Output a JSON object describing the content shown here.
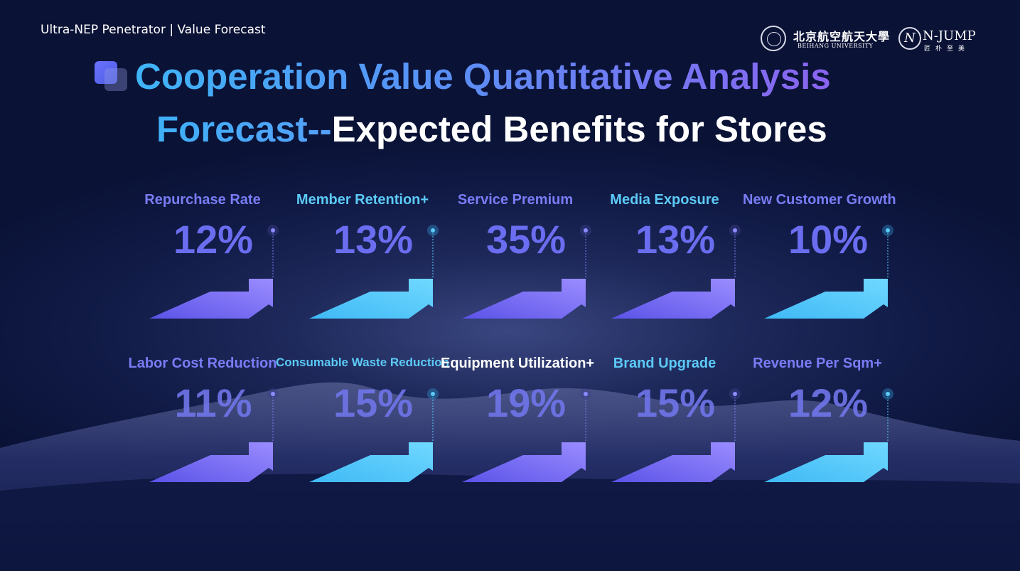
{
  "header": {
    "breadcrumb": "Ultra-NEP Penetrator | Value Forecast",
    "logo_beihang_cn": "北京航空航天大學",
    "logo_beihang_en": "BEIHANG UNIVERSITY",
    "logo_njump": "N-JUMP",
    "logo_njump_sub": "匠朴至美"
  },
  "title": {
    "line1": "Cooperation Value Quantitative Analysis",
    "line2_highlight": "Forecast--",
    "line2_rest": "Expected Benefits for Stores"
  },
  "metrics_top": [
    {
      "label": "Repurchase Rate",
      "value": "12%",
      "label_color": "#7a7cf5",
      "arrow": "purple"
    },
    {
      "label": "Member Retention+",
      "value": "13%",
      "label_color": "#5ccaf6",
      "arrow": "cyan"
    },
    {
      "label": "Service Premium",
      "value": "35%",
      "label_color": "#7a7cf5",
      "arrow": "purple"
    },
    {
      "label": "Media Exposure",
      "value": "13%",
      "label_color": "#5ccaf6",
      "arrow": "purple"
    },
    {
      "label": "New Customer Growth",
      "value": "10%",
      "label_color": "#7a7cf5",
      "arrow": "cyan"
    }
  ],
  "metrics_bottom": [
    {
      "label": "Labor Cost Reduction",
      "value": "11%",
      "label_color": "#7a7cf5",
      "arrow": "purple"
    },
    {
      "label": "Consumable Waste Reduction",
      "value": "15%",
      "label_color": "#5ccaf6",
      "arrow": "cyan"
    },
    {
      "label": "Equipment Utilization+",
      "value": "19%",
      "label_color": "#ffffff",
      "arrow": "purple"
    },
    {
      "label": "Brand Upgrade",
      "value": "15%",
      "label_color": "#5ccaf6",
      "arrow": "purple"
    },
    {
      "label": "Revenue Per Sqm+",
      "value": "12%",
      "label_color": "#7a7cf5",
      "arrow": "cyan"
    }
  ],
  "colors": {
    "arrow_purple_start": "#5b53e8",
    "arrow_purple_end": "#9a8cff",
    "arrow_cyan_start": "#3fb9f5",
    "arrow_cyan_end": "#6fd8ff",
    "background": "#101a45"
  }
}
